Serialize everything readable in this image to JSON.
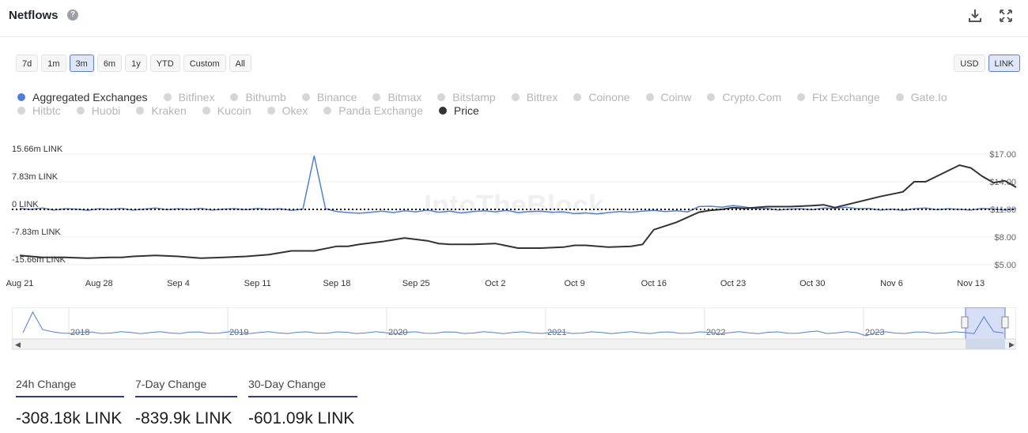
{
  "header": {
    "title": "Netflows",
    "help_icon": "question-circle-icon",
    "download_icon": "download-icon",
    "fullscreen_icon": "expand-icon"
  },
  "range_buttons": [
    {
      "label": "7d",
      "active": false
    },
    {
      "label": "1m",
      "active": false
    },
    {
      "label": "3m",
      "active": true
    },
    {
      "label": "6m",
      "active": false
    },
    {
      "label": "1y",
      "active": false
    },
    {
      "label": "YTD",
      "active": false
    },
    {
      "label": "Custom",
      "active": false
    },
    {
      "label": "All",
      "active": false
    }
  ],
  "unit_buttons": [
    {
      "label": "USD",
      "active": false
    },
    {
      "label": "LINK",
      "active": true
    }
  ],
  "legend_rows": [
    [
      {
        "label": "Aggregated Exchanges",
        "active": true,
        "color": "#4f7fd9"
      },
      {
        "label": "Bitfinex",
        "active": false
      },
      {
        "label": "Bithumb",
        "active": false
      },
      {
        "label": "Binance",
        "active": false
      },
      {
        "label": "Bitmax",
        "active": false
      },
      {
        "label": "Bitstamp",
        "active": false
      },
      {
        "label": "Bittrex",
        "active": false
      },
      {
        "label": "Coinone",
        "active": false
      },
      {
        "label": "Coinw",
        "active": false
      },
      {
        "label": "Crypto.Com",
        "active": false
      },
      {
        "label": "Ftx Exchange",
        "active": false
      },
      {
        "label": "Gate.Io",
        "active": false
      }
    ],
    [
      {
        "label": "Hitbtc",
        "active": false
      },
      {
        "label": "Huobi",
        "active": false
      },
      {
        "label": "Kraken",
        "active": false
      },
      {
        "label": "Kucoin",
        "active": false
      },
      {
        "label": "Okex",
        "active": false
      },
      {
        "label": "Panda Exchange",
        "active": false
      },
      {
        "label": "Price",
        "active": true,
        "color": "#333333"
      }
    ]
  ],
  "chart_data": {
    "type": "line",
    "watermark": "IntoTheBlock",
    "x_ticks": [
      "Aug 21",
      "Aug 28",
      "Sep 4",
      "Sep 11",
      "Sep 18",
      "Sep 25",
      "Oct 2",
      "Oct 9",
      "Oct 16",
      "Oct 23",
      "Oct 30",
      "Nov 6",
      "Nov 13"
    ],
    "y_left": {
      "ticks": [
        "15.66m LINK",
        "7.83m LINK",
        "0 LINK",
        "-7.83m LINK",
        "-15.66m LINK"
      ],
      "ylim": [
        -15.66,
        15.66
      ],
      "unit": "m LINK"
    },
    "y_right": {
      "ticks": [
        "$17.00",
        "$14.00",
        "$11.00",
        "$8.00",
        "$5.00"
      ],
      "ylim": [
        5,
        17
      ]
    },
    "series": [
      {
        "name": "Aggregated Exchanges",
        "color": "#4f7fd9",
        "axis": "left",
        "x": [
          0,
          1,
          2,
          3,
          4,
          5,
          6,
          7,
          8,
          9,
          10,
          11,
          12,
          13,
          14,
          15,
          16,
          17,
          18,
          19,
          20,
          21,
          22,
          23,
          24,
          25,
          26,
          27,
          28,
          29,
          30,
          31,
          32,
          33,
          34,
          35,
          36,
          37,
          38,
          39,
          40,
          41,
          42,
          43,
          44,
          45,
          46,
          47,
          48,
          49,
          50,
          51,
          52,
          53,
          54,
          55,
          56,
          57,
          58,
          59,
          60,
          61,
          62,
          63,
          64,
          65,
          66,
          67,
          68,
          69,
          70,
          71,
          72,
          73,
          74,
          75,
          76,
          77,
          78,
          79,
          80,
          81,
          82,
          83,
          84,
          85,
          86,
          87,
          88
        ],
        "values": [
          0.3,
          0.0,
          0.4,
          -0.2,
          0.2,
          0.1,
          -0.3,
          0.2,
          0.0,
          0.3,
          -0.2,
          0.1,
          0.4,
          -0.1,
          0.2,
          0.0,
          0.3,
          -0.2,
          0.1,
          0.2,
          -0.1,
          0.3,
          0.0,
          0.2,
          -0.3,
          0.1,
          15.2,
          0.2,
          -0.6,
          -0.9,
          -1.1,
          -0.8,
          -0.5,
          -0.9,
          -0.4,
          -0.7,
          -0.2,
          -0.8,
          -0.5,
          -1.0,
          -0.6,
          -0.4,
          -0.7,
          -0.3,
          -0.9,
          -0.6,
          -0.5,
          -0.8,
          -0.7,
          -1.2,
          -1.0,
          -1.3,
          -0.9,
          -0.6,
          -0.8,
          -0.5,
          -0.3,
          -0.6,
          -0.4,
          -0.7,
          0.8,
          0.9,
          0.6,
          1.1,
          0.7,
          0.2,
          0.3,
          -0.2,
          0.1,
          0.2,
          -0.1,
          0.4,
          0.3,
          0.6,
          0.2,
          0.3,
          -0.2,
          0.1,
          -0.3,
          0.2,
          0.4,
          -0.1,
          0.2,
          0.0,
          -0.2,
          0.3,
          0.1,
          -0.2,
          0.2
        ]
      },
      {
        "name": "Price",
        "color": "#333333",
        "axis": "right",
        "x": [
          0,
          2,
          4,
          6,
          8,
          9,
          10,
          12,
          14,
          16,
          18,
          20,
          22,
          24,
          26,
          28,
          29,
          30,
          32,
          33,
          34,
          36,
          37,
          38,
          40,
          42,
          44,
          46,
          48,
          49,
          50,
          52,
          54,
          55,
          56,
          58,
          60,
          61,
          62,
          63,
          64,
          66,
          68,
          70,
          71,
          72,
          73,
          74,
          76,
          78,
          79,
          80,
          81,
          82,
          83,
          84,
          85,
          86,
          87,
          88
        ],
        "values": [
          6.0,
          5.8,
          5.8,
          5.7,
          5.8,
          5.8,
          5.9,
          6.0,
          5.9,
          5.7,
          5.8,
          5.9,
          6.1,
          6.5,
          6.5,
          7.0,
          7.0,
          7.2,
          7.5,
          7.7,
          7.9,
          7.6,
          7.3,
          7.2,
          7.2,
          7.3,
          6.8,
          6.8,
          6.9,
          7.1,
          7.1,
          6.9,
          7.0,
          7.2,
          8.8,
          9.6,
          10.7,
          10.9,
          11.0,
          11.2,
          11.1,
          11.3,
          11.3,
          11.4,
          11.5,
          11.2,
          11.5,
          11.8,
          12.4,
          12.9,
          14.0,
          14.0,
          14.6,
          15.2,
          15.8,
          15.5,
          14.6,
          13.9,
          14.1,
          13.4
        ]
      }
    ],
    "navigator": {
      "years": [
        "2018",
        "2019",
        "2020",
        "2021",
        "2022",
        "2023"
      ]
    }
  },
  "stats": [
    {
      "label": "24h Change",
      "value": "-308.18k LINK"
    },
    {
      "label": "7-Day Change",
      "value": "-839.9k LINK"
    },
    {
      "label": "30-Day Change",
      "value": "-601.09k LINK"
    }
  ]
}
